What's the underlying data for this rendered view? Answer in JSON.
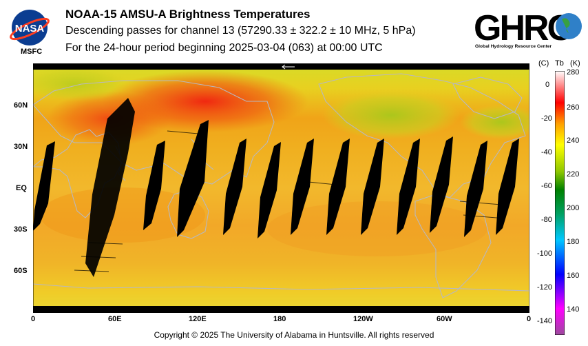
{
  "logo_nasa": {
    "text": "NASA",
    "label": "MSFC"
  },
  "logo_ghrc": {
    "text": "GHRC",
    "subtitle": "Global Hydrology Resource Center"
  },
  "title": {
    "line1": "NOAA-15 AMSU-A Brightness Temperatures",
    "line2": "Descending passes for channel 13 (57290.33 ± 322.2 ± 10 MHz, 5 hPa)",
    "line3": "For the 24-hour period beginning 2025-03-04 (063) at 00:00 UTC"
  },
  "map": {
    "lat_labels": [
      "60N",
      "30N",
      "EQ",
      "30S",
      "60S"
    ],
    "lon_labels": [
      "0",
      "60E",
      "120E",
      "180",
      "120W",
      "60W",
      "0"
    ]
  },
  "colorbar": {
    "unit_c": "(C)",
    "unit_tb": "Tb",
    "unit_k": "(K)",
    "celsius_ticks": [
      "0",
      "-20",
      "-40",
      "-60",
      "-80",
      "-100",
      "-120",
      "-140"
    ],
    "kelvin_ticks": [
      "280",
      "260",
      "240",
      "220",
      "200",
      "180",
      "160",
      "140"
    ],
    "min_k": 130,
    "max_k": 280,
    "colors": [
      "#9b4a9b",
      "#ff00ff",
      "#0000ff",
      "#00c8ff",
      "#00a060",
      "#008000",
      "#90c800",
      "#ffff00",
      "#ffa000",
      "#ff0000",
      "#ffffff"
    ]
  },
  "footer": {
    "copyright": "Copyright © 2025 The University of Alabama in Huntsville.  All rights reserved"
  }
}
